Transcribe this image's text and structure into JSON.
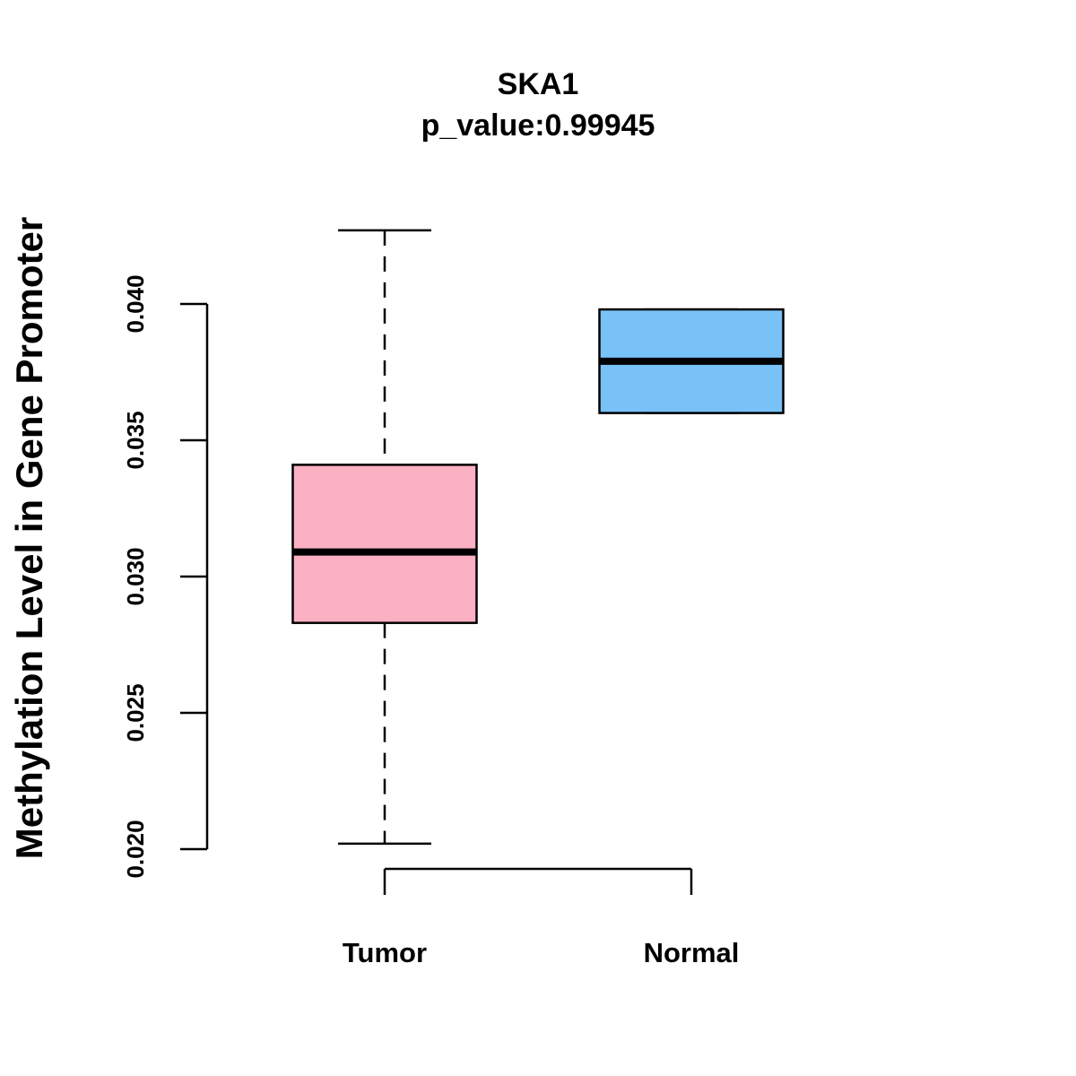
{
  "chart_data": {
    "type": "boxplot",
    "title": "SKA1",
    "subtitle": "p_value:0.99945",
    "xlabel": "",
    "ylabel": "Methylation Level in Gene Promoter",
    "ylim": [
      0.019,
      0.0435
    ],
    "yticks": [
      0.02,
      0.025,
      0.03,
      0.035,
      0.04
    ],
    "ytick_labels": [
      "0.020",
      "0.025",
      "0.030",
      "0.035",
      "0.040"
    ],
    "categories": [
      "Tumor",
      "Normal"
    ],
    "series": [
      {
        "name": "Tumor",
        "whisker_low": 0.0202,
        "q1": 0.0283,
        "median": 0.0309,
        "q3": 0.0341,
        "whisker_high": 0.0427,
        "color": "#FBB1C3"
      },
      {
        "name": "Normal",
        "whisker_low": 0.036,
        "q1": 0.036,
        "median": 0.0379,
        "q3": 0.0398,
        "whisker_high": 0.0398,
        "color": "#78C2F8"
      }
    ],
    "grid": false,
    "legend": "none"
  }
}
